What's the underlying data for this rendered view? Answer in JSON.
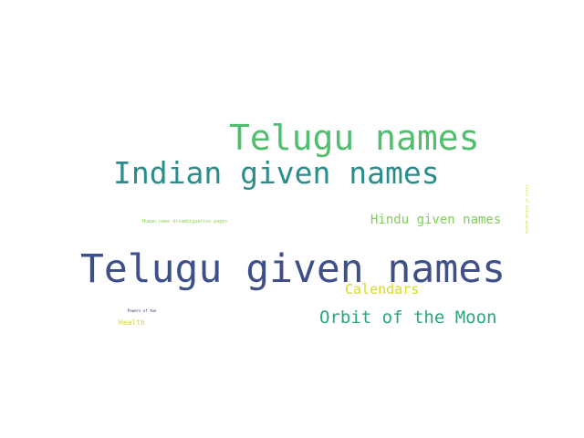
{
  "words": [
    {
      "text": "Telugu given names",
      "color": "#3e4f8a"
    },
    {
      "text": "Indian given names",
      "color": "#2a8d8b"
    },
    {
      "text": "Telugu names",
      "color": "#4fbf6e"
    },
    {
      "text": "Hindu given names",
      "color": "#82cf5a"
    },
    {
      "text": "Orbit of the Moon",
      "color": "#2aa57f"
    },
    {
      "text": "Calendars",
      "color": "#d6d92b"
    },
    {
      "text": "Human name disambiguation pages",
      "color": "#90d452"
    },
    {
      "text": "Health",
      "color": "#d8db2c"
    },
    {
      "text": "Powers of two",
      "color": "#3a2f6d"
    },
    {
      "text": "Lists of Indian people",
      "color": "#c8dc3a"
    }
  ]
}
